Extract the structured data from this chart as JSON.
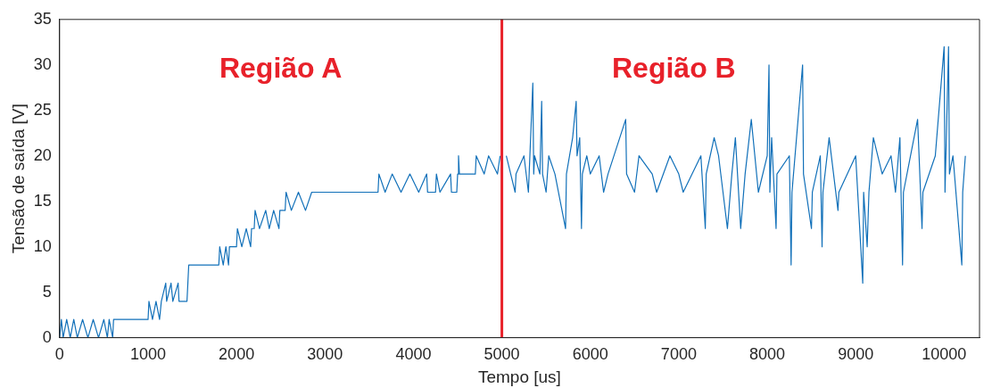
{
  "chart_data": {
    "type": "line",
    "xlabel": "Tempo [us]",
    "ylabel": "Tensão de saída [V]",
    "xlim": [
      0,
      10400
    ],
    "xticks": [
      0,
      1000,
      2000,
      3000,
      4000,
      5000,
      6000,
      7000,
      8000,
      9000,
      10000
    ],
    "ylim": [
      0,
      35
    ],
    "yticks": [
      0,
      5,
      10,
      15,
      20,
      25,
      30,
      35
    ],
    "grid": false,
    "legend": false,
    "marker": "none",
    "line_style": "solid",
    "ref_lines": [
      {
        "axis": "x",
        "value": 5000,
        "color": "#e8212a"
      }
    ],
    "annotations": [
      "Região A",
      "Região B"
    ],
    "series": [
      {
        "color": "#1170b9",
        "x": [
          0,
          20,
          40,
          80,
          120,
          160,
          200,
          260,
          320,
          380,
          440,
          500,
          540,
          560,
          600,
          610,
          1000,
          1010,
          1050,
          1090,
          1130,
          1150,
          1200,
          1210,
          1260,
          1280,
          1340,
          1350,
          1440,
          1450,
          1460,
          1800,
          1810,
          1850,
          1880,
          1910,
          1920,
          2000,
          2010,
          2060,
          2110,
          2160,
          2170,
          2200,
          2210,
          2260,
          2330,
          2370,
          2420,
          2480,
          2490,
          2550,
          2560,
          2620,
          2700,
          2780,
          2850,
          3600,
          3610,
          3680,
          3760,
          3860,
          3960,
          4060,
          4150,
          4160,
          4250,
          4260,
          4300,
          4420,
          4430,
          4490,
          4500,
          4510,
          4520,
          4700,
          4710,
          4800,
          4850,
          4950,
          4980,
          5000,
          5050,
          5100,
          5150,
          5160,
          5250,
          5300,
          5350,
          5360,
          5370,
          5430,
          5450,
          5460,
          5500,
          5530,
          5600,
          5720,
          5730,
          5800,
          5840,
          5850,
          5880,
          5900,
          5910,
          5960,
          6000,
          6100,
          6150,
          6200,
          6400,
          6410,
          6500,
          6550,
          6700,
          6750,
          6900,
          7000,
          7050,
          7250,
          7300,
          7310,
          7400,
          7450,
          7500,
          7550,
          7600,
          7640,
          7700,
          7750,
          7820,
          7900,
          8000,
          8020,
          8030,
          8050,
          8100,
          8110,
          8250,
          8270,
          8280,
          8400,
          8410,
          8500,
          8510,
          8600,
          8620,
          8630,
          8700,
          8800,
          8810,
          9000,
          9080,
          9090,
          9130,
          9150,
          9200,
          9300,
          9400,
          9450,
          9500,
          9530,
          9540,
          9700,
          9750,
          9760,
          9900,
          10000,
          10010,
          10050,
          10060,
          10100,
          10200,
          10210,
          10240
        ],
        "values": [
          0,
          2,
          0,
          2,
          0,
          2,
          0,
          2,
          0,
          2,
          0,
          2,
          0,
          2,
          0,
          2,
          2,
          4,
          2,
          4,
          2,
          4,
          6,
          4,
          6,
          4,
          6,
          4,
          4,
          6,
          8,
          8,
          10,
          8,
          10,
          8,
          10,
          10,
          12,
          10,
          12,
          10,
          12,
          12,
          14,
          12,
          14,
          12,
          14,
          12,
          14,
          14,
          16,
          14,
          16,
          14,
          16,
          16,
          18,
          16,
          18,
          16,
          18,
          16,
          18,
          16,
          16,
          18,
          16,
          18,
          16,
          16,
          18,
          20,
          18,
          18,
          20,
          18,
          20,
          18,
          20,
          null,
          20,
          18,
          16,
          18,
          20,
          16,
          28,
          18,
          20,
          18,
          26,
          18,
          16,
          20,
          18,
          12,
          18,
          22,
          26,
          20,
          22,
          12,
          18,
          20,
          18,
          20,
          16,
          18,
          24,
          18,
          16,
          20,
          18,
          16,
          20,
          18,
          16,
          20,
          12,
          18,
          22,
          20,
          16,
          12,
          18,
          22,
          12,
          18,
          24,
          16,
          20,
          30,
          16,
          22,
          12,
          18,
          20,
          8,
          16,
          30,
          18,
          12,
          16,
          20,
          10,
          16,
          22,
          14,
          16,
          20,
          6,
          16,
          10,
          16,
          22,
          18,
          20,
          16,
          22,
          8,
          16,
          24,
          12,
          16,
          20,
          32,
          16,
          32,
          18,
          20,
          8,
          16,
          20
        ]
      }
    ]
  }
}
